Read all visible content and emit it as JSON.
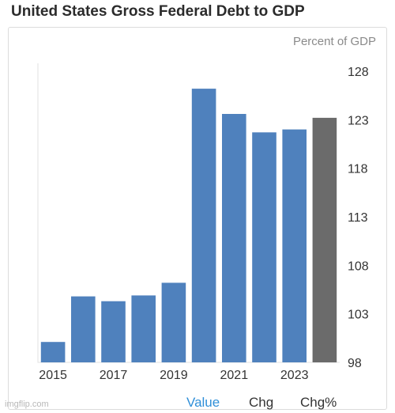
{
  "header": {
    "title": "United States Gross Federal Debt to GDP"
  },
  "chart_data": {
    "type": "bar",
    "title": "United States Gross Federal Debt to GDP",
    "unit_label": "Percent of GDP",
    "categories": [
      "2015",
      "2016",
      "2017",
      "2018",
      "2019",
      "2020",
      "2021",
      "2022",
      "2023",
      "2024"
    ],
    "values": [
      100.1,
      104.8,
      104.3,
      104.9,
      106.2,
      126.2,
      123.6,
      121.7,
      122.0,
      123.2
    ],
    "x_tick_labels": [
      "2015",
      "2017",
      "2019",
      "2021",
      "2023"
    ],
    "y_ticks": [
      98,
      103,
      108,
      113,
      118,
      123,
      128
    ],
    "ylim": [
      98,
      128
    ],
    "bar_colors": [
      "#4f81bd",
      "#4f81bd",
      "#4f81bd",
      "#4f81bd",
      "#4f81bd",
      "#4f81bd",
      "#4f81bd",
      "#4f81bd",
      "#4f81bd",
      "#6b6b6b"
    ],
    "grid": false,
    "y_axis_side": "right"
  },
  "tabs": [
    {
      "label": "Value",
      "active": true
    },
    {
      "label": "Chg",
      "active": false
    },
    {
      "label": "Chg%",
      "active": false
    }
  ],
  "watermark": "imgflip.com"
}
